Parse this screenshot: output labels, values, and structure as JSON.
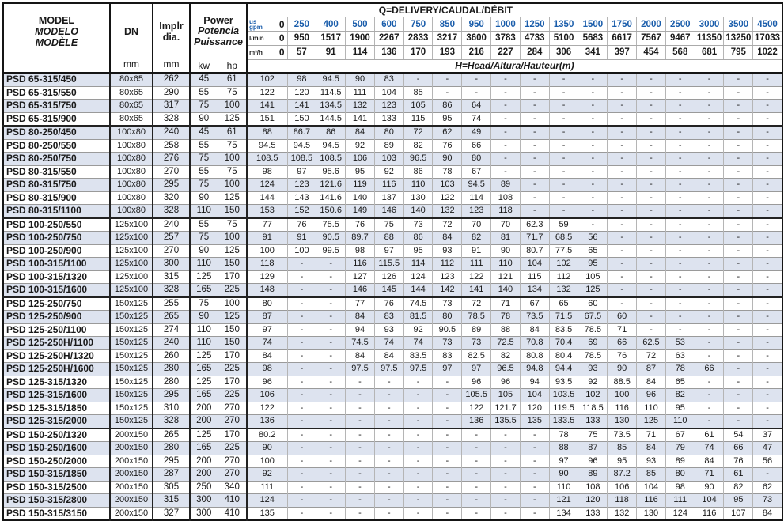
{
  "header": {
    "model_title": [
      "MODEL",
      "MODELO",
      "MODÈLE"
    ],
    "dn_label": "DN",
    "dn_unit": "mm",
    "impeller_label": [
      "Implr",
      "dia."
    ],
    "impeller_unit": "mm",
    "power_title": [
      "Power",
      "Potencia",
      "Puissance"
    ],
    "power_units": [
      "kw",
      "hp"
    ],
    "q_title": "Q=DELIVERY/CAUDAL/DÉBIT",
    "h_title": "H=Head/Altura/Hauteur(m)",
    "flow_rows": [
      {
        "unit": [
          "us",
          "gpm"
        ],
        "zero": "0",
        "style": "blue",
        "values": [
          "250",
          "400",
          "500",
          "600",
          "750",
          "850",
          "950",
          "1000",
          "1250",
          "1350",
          "1500",
          "1750",
          "2000",
          "2500",
          "3000",
          "3500",
          "4500"
        ]
      },
      {
        "unit": [
          "l/min"
        ],
        "zero": "0",
        "style": "black",
        "values": [
          "950",
          "1517",
          "1900",
          "2267",
          "2833",
          "3217",
          "3600",
          "3783",
          "4733",
          "5100",
          "5683",
          "6617",
          "7567",
          "9467",
          "11350",
          "13250",
          "17033"
        ]
      },
      {
        "unit": [
          "m³/h"
        ],
        "zero": "0",
        "style": "black",
        "values": [
          "57",
          "91",
          "114",
          "136",
          "170",
          "193",
          "216",
          "227",
          "284",
          "306",
          "341",
          "397",
          "454",
          "568",
          "681",
          "795",
          "1022"
        ]
      }
    ]
  },
  "rows": [
    {
      "model": "PSD 65-315/450",
      "dn": "80x65",
      "dia": "262",
      "kw": "45",
      "hp": "61",
      "heads": [
        "102",
        "98",
        "94.5",
        "90",
        "83",
        "-",
        "-",
        "-",
        "-",
        "-",
        "-",
        "-",
        "-",
        "-",
        "-",
        "-",
        "-",
        "-"
      ]
    },
    {
      "model": "PSD 65-315/550",
      "dn": "80x65",
      "dia": "290",
      "kw": "55",
      "hp": "75",
      "heads": [
        "122",
        "120",
        "114.5",
        "111",
        "104",
        "85",
        "-",
        "-",
        "-",
        "-",
        "-",
        "-",
        "-",
        "-",
        "-",
        "-",
        "-",
        "-"
      ]
    },
    {
      "model": "PSD 65-315/750",
      "dn": "80x65",
      "dia": "317",
      "kw": "75",
      "hp": "100",
      "heads": [
        "141",
        "141",
        "134.5",
        "132",
        "123",
        "105",
        "86",
        "64",
        "-",
        "-",
        "-",
        "-",
        "-",
        "-",
        "-",
        "-",
        "-",
        "-"
      ]
    },
    {
      "model": "PSD 65-315/900",
      "dn": "80x65",
      "dia": "328",
      "kw": "90",
      "hp": "125",
      "heads": [
        "151",
        "150",
        "144.5",
        "141",
        "133",
        "115",
        "95",
        "74",
        "-",
        "-",
        "-",
        "-",
        "-",
        "-",
        "-",
        "-",
        "-",
        "-"
      ],
      "group_end": true
    },
    {
      "model": "PSD 80-250/450",
      "dn": "100x80",
      "dia": "240",
      "kw": "45",
      "hp": "61",
      "heads": [
        "88",
        "86.7",
        "86",
        "84",
        "80",
        "72",
        "62",
        "49",
        "-",
        "-",
        "-",
        "-",
        "-",
        "-",
        "-",
        "-",
        "-",
        "-"
      ]
    },
    {
      "model": "PSD 80-250/550",
      "dn": "100x80",
      "dia": "258",
      "kw": "55",
      "hp": "75",
      "heads": [
        "94.5",
        "94.5",
        "94.5",
        "92",
        "89",
        "82",
        "76",
        "66",
        "-",
        "-",
        "-",
        "-",
        "-",
        "-",
        "-",
        "-",
        "-",
        "-"
      ]
    },
    {
      "model": "PSD 80-250/750",
      "dn": "100x80",
      "dia": "276",
      "kw": "75",
      "hp": "100",
      "heads": [
        "108.5",
        "108.5",
        "108.5",
        "106",
        "103",
        "96.5",
        "90",
        "80",
        "-",
        "-",
        "-",
        "-",
        "-",
        "-",
        "-",
        "-",
        "-",
        "-"
      ]
    },
    {
      "model": "PSD 80-315/550",
      "dn": "100x80",
      "dia": "270",
      "kw": "55",
      "hp": "75",
      "heads": [
        "98",
        "97",
        "95.6",
        "95",
        "92",
        "86",
        "78",
        "67",
        "-",
        "-",
        "-",
        "-",
        "-",
        "-",
        "-",
        "-",
        "-",
        "-"
      ]
    },
    {
      "model": "PSD 80-315/750",
      "dn": "100x80",
      "dia": "295",
      "kw": "75",
      "hp": "100",
      "heads": [
        "124",
        "123",
        "121.6",
        "119",
        "116",
        "110",
        "103",
        "94.5",
        "89",
        "-",
        "-",
        "-",
        "-",
        "-",
        "-",
        "-",
        "-",
        "-"
      ]
    },
    {
      "model": "PSD 80-315/900",
      "dn": "100x80",
      "dia": "320",
      "kw": "90",
      "hp": "125",
      "heads": [
        "144",
        "143",
        "141.6",
        "140",
        "137",
        "130",
        "122",
        "114",
        "108",
        "-",
        "-",
        "-",
        "-",
        "-",
        "-",
        "-",
        "-",
        "-"
      ]
    },
    {
      "model": "PSD 80-315/1100",
      "dn": "100x80",
      "dia": "328",
      "kw": "110",
      "hp": "150",
      "heads": [
        "153",
        "152",
        "150.6",
        "149",
        "146",
        "140",
        "132",
        "123",
        "118",
        "-",
        "-",
        "-",
        "-",
        "-",
        "-",
        "-",
        "-",
        "-"
      ],
      "group_end": true
    },
    {
      "model": "PSD 100-250/550",
      "dn": "125x100",
      "dia": "240",
      "kw": "55",
      "hp": "75",
      "heads": [
        "77",
        "76",
        "75.5",
        "76",
        "75",
        "73",
        "72",
        "70",
        "70",
        "62.3",
        "59",
        "-",
        "-",
        "-",
        "-",
        "-",
        "-",
        "-"
      ]
    },
    {
      "model": "PSD 100-250/750",
      "dn": "125x100",
      "dia": "257",
      "kw": "75",
      "hp": "100",
      "heads": [
        "91",
        "91",
        "90.5",
        "89.7",
        "88",
        "86",
        "84",
        "82",
        "81",
        "71.7",
        "68.5",
        "56",
        "-",
        "-",
        "-",
        "-",
        "-",
        "-"
      ]
    },
    {
      "model": "PSD 100-250/900",
      "dn": "125x100",
      "dia": "270",
      "kw": "90",
      "hp": "125",
      "heads": [
        "100",
        "100",
        "99.5",
        "98",
        "97",
        "95",
        "93",
        "91",
        "90",
        "80.7",
        "77.5",
        "65",
        "-",
        "-",
        "-",
        "-",
        "-",
        "-"
      ]
    },
    {
      "model": "PSD 100-315/1100",
      "dn": "125x100",
      "dia": "300",
      "kw": "110",
      "hp": "150",
      "heads": [
        "118",
        "-",
        "-",
        "116",
        "115.5",
        "114",
        "112",
        "111",
        "110",
        "104",
        "102",
        "95",
        "-",
        "-",
        "-",
        "-",
        "-",
        "-"
      ]
    },
    {
      "model": "PSD 100-315/1320",
      "dn": "125x100",
      "dia": "315",
      "kw": "125",
      "hp": "170",
      "heads": [
        "129",
        "-",
        "-",
        "127",
        "126",
        "124",
        "123",
        "122",
        "121",
        "115",
        "112",
        "105",
        "-",
        "-",
        "-",
        "-",
        "-",
        "-"
      ]
    },
    {
      "model": "PSD 100-315/1600",
      "dn": "125x100",
      "dia": "328",
      "kw": "165",
      "hp": "225",
      "heads": [
        "148",
        "-",
        "-",
        "146",
        "145",
        "144",
        "142",
        "141",
        "140",
        "134",
        "132",
        "125",
        "-",
        "-",
        "-",
        "-",
        "-",
        "-"
      ],
      "group_end": true
    },
    {
      "model": "PSD 125-250/750",
      "dn": "150x125",
      "dia": "255",
      "kw": "75",
      "hp": "100",
      "heads": [
        "80",
        "-",
        "-",
        "77",
        "76",
        "74.5",
        "73",
        "72",
        "71",
        "67",
        "65",
        "60",
        "-",
        "-",
        "-",
        "-",
        "-",
        "-"
      ]
    },
    {
      "model": "PSD 125-250/900",
      "dn": "150x125",
      "dia": "265",
      "kw": "90",
      "hp": "125",
      "heads": [
        "87",
        "-",
        "-",
        "84",
        "83",
        "81.5",
        "80",
        "78.5",
        "78",
        "73.5",
        "71.5",
        "67.5",
        "60",
        "-",
        "-",
        "-",
        "-",
        "-"
      ]
    },
    {
      "model": "PSD 125-250/1100",
      "dn": "150x125",
      "dia": "274",
      "kw": "110",
      "hp": "150",
      "heads": [
        "97",
        "-",
        "-",
        "94",
        "93",
        "92",
        "90.5",
        "89",
        "88",
        "84",
        "83.5",
        "78.5",
        "71",
        "-",
        "-",
        "-",
        "-",
        "-"
      ]
    },
    {
      "model": "PSD 125-250H/1100",
      "dn": "150x125",
      "dia": "240",
      "kw": "110",
      "hp": "150",
      "heads": [
        "74",
        "-",
        "-",
        "74.5",
        "74",
        "74",
        "73",
        "73",
        "72.5",
        "70.8",
        "70.4",
        "69",
        "66",
        "62.5",
        "53",
        "-",
        "-",
        "-"
      ]
    },
    {
      "model": "PSD 125-250H/1320",
      "dn": "150x125",
      "dia": "260",
      "kw": "125",
      "hp": "170",
      "heads": [
        "84",
        "-",
        "-",
        "84",
        "84",
        "83.5",
        "83",
        "82.5",
        "82",
        "80.8",
        "80.4",
        "78.5",
        "76",
        "72",
        "63",
        "-",
        "-",
        "-"
      ]
    },
    {
      "model": "PSD 125-250H/1600",
      "dn": "150x125",
      "dia": "280",
      "kw": "165",
      "hp": "225",
      "heads": [
        "98",
        "-",
        "-",
        "97.5",
        "97.5",
        "97.5",
        "97",
        "97",
        "96.5",
        "94.8",
        "94.4",
        "93",
        "90",
        "87",
        "78",
        "66",
        "-",
        "-"
      ]
    },
    {
      "model": "PSD 125-315/1320",
      "dn": "150x125",
      "dia": "280",
      "kw": "125",
      "hp": "170",
      "heads": [
        "96",
        "-",
        "-",
        "-",
        "-",
        "-",
        "-",
        "96",
        "96",
        "94",
        "93.5",
        "92",
        "88.5",
        "84",
        "65",
        "-",
        "-",
        "-"
      ]
    },
    {
      "model": "PSD 125-315/1600",
      "dn": "150x125",
      "dia": "295",
      "kw": "165",
      "hp": "225",
      "heads": [
        "106",
        "-",
        "-",
        "-",
        "-",
        "-",
        "-",
        "105.5",
        "105",
        "104",
        "103.5",
        "102",
        "100",
        "96",
        "82",
        "-",
        "-",
        "-"
      ]
    },
    {
      "model": "PSD 125-315/1850",
      "dn": "150x125",
      "dia": "310",
      "kw": "200",
      "hp": "270",
      "heads": [
        "122",
        "-",
        "-",
        "-",
        "-",
        "-",
        "-",
        "122",
        "121.7",
        "120",
        "119.5",
        "118.5",
        "116",
        "110",
        "95",
        "-",
        "-",
        "-"
      ]
    },
    {
      "model": "PSD 125-315/2000",
      "dn": "150x125",
      "dia": "328",
      "kw": "200",
      "hp": "270",
      "heads": [
        "136",
        "-",
        "-",
        "-",
        "-",
        "-",
        "-",
        "136",
        "135.5",
        "135",
        "133.5",
        "133",
        "130",
        "125",
        "110",
        "-",
        "-",
        "-"
      ],
      "group_end": true
    },
    {
      "model": "PSD 150-250/1320",
      "dn": "200x150",
      "dia": "265",
      "kw": "125",
      "hp": "170",
      "heads": [
        "80.2",
        "-",
        "-",
        "-",
        "-",
        "-",
        "-",
        "-",
        "-",
        "-",
        "78",
        "75",
        "73.5",
        "71",
        "67",
        "61",
        "54",
        "37"
      ]
    },
    {
      "model": "PSD 150-250/1600",
      "dn": "200x150",
      "dia": "280",
      "kw": "165",
      "hp": "225",
      "heads": [
        "90",
        "-",
        "-",
        "-",
        "-",
        "-",
        "-",
        "-",
        "-",
        "-",
        "88",
        "87",
        "85",
        "84",
        "79",
        "74",
        "66",
        "47"
      ]
    },
    {
      "model": "PSD 150-250/2000",
      "dn": "200x150",
      "dia": "295",
      "kw": "200",
      "hp": "270",
      "heads": [
        "100",
        "-",
        "-",
        "-",
        "-",
        "-",
        "-",
        "-",
        "-",
        "-",
        "97",
        "96",
        "95",
        "93",
        "89",
        "84",
        "76",
        "56"
      ]
    },
    {
      "model": "PSD 150-315/1850",
      "dn": "200x150",
      "dia": "287",
      "kw": "200",
      "hp": "270",
      "heads": [
        "92",
        "-",
        "-",
        "-",
        "-",
        "-",
        "-",
        "-",
        "-",
        "-",
        "90",
        "89",
        "87.2",
        "85",
        "80",
        "71",
        "61",
        "-"
      ]
    },
    {
      "model": "PSD 150-315/2500",
      "dn": "200x150",
      "dia": "305",
      "kw": "250",
      "hp": "340",
      "heads": [
        "111",
        "-",
        "-",
        "-",
        "-",
        "-",
        "-",
        "-",
        "-",
        "-",
        "110",
        "108",
        "106",
        "104",
        "98",
        "90",
        "82",
        "62"
      ]
    },
    {
      "model": "PSD 150-315/2800",
      "dn": "200x150",
      "dia": "315",
      "kw": "300",
      "hp": "410",
      "heads": [
        "124",
        "-",
        "-",
        "-",
        "-",
        "-",
        "-",
        "-",
        "-",
        "-",
        "121",
        "120",
        "118",
        "116",
        "111",
        "104",
        "95",
        "73"
      ]
    },
    {
      "model": "PSD 150-315/3150",
      "dn": "200x150",
      "dia": "327",
      "kw": "300",
      "hp": "410",
      "heads": [
        "135",
        "-",
        "-",
        "-",
        "-",
        "-",
        "-",
        "-",
        "-",
        "-",
        "134",
        "133",
        "132",
        "130",
        "124",
        "116",
        "107",
        "84"
      ]
    }
  ],
  "colors": {
    "accent-blue": "#1a5dab",
    "row-shade": "#dde3ef",
    "border-dark": "#151515",
    "border-light": "#b5b5b5"
  }
}
